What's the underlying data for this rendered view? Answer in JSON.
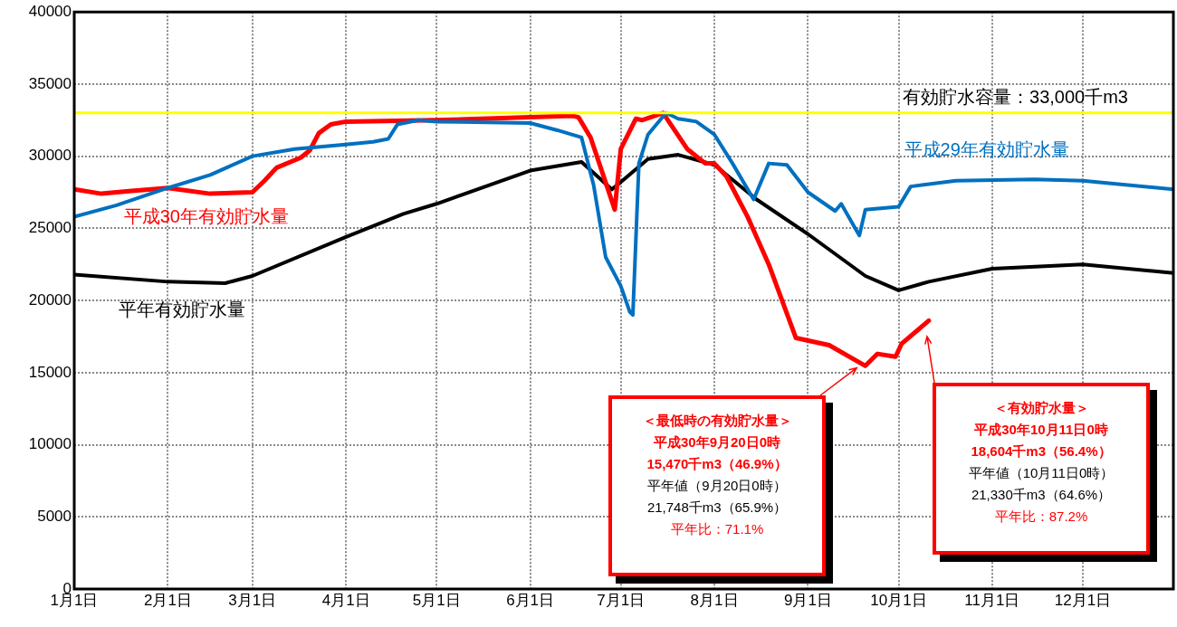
{
  "chart_data": {
    "type": "line",
    "xlim": [
      "--01-01",
      "--12-31"
    ],
    "xticks": [
      {
        "value": "--01-01",
        "label": "1月1日"
      },
      {
        "value": "--02-01",
        "label": "2月1日"
      },
      {
        "value": "--03-01",
        "label": "3月1日"
      },
      {
        "value": "--04-01",
        "label": "4月1日"
      },
      {
        "value": "--05-01",
        "label": "5月1日"
      },
      {
        "value": "--06-01",
        "label": "6月1日"
      },
      {
        "value": "--07-01",
        "label": "7月1日"
      },
      {
        "value": "--08-01",
        "label": "8月1日"
      },
      {
        "value": "--09-01",
        "label": "9月1日"
      },
      {
        "value": "--10-01",
        "label": "10月1日"
      },
      {
        "value": "--11-01",
        "label": "11月1日"
      },
      {
        "value": "--12-01",
        "label": "12月1日"
      }
    ],
    "ylim": [
      0,
      40000
    ],
    "yticks": [
      0,
      5000,
      10000,
      15000,
      20000,
      25000,
      30000,
      35000,
      40000
    ],
    "grid": true,
    "legend": false,
    "marker": "none",
    "line_style": "solid",
    "series": [
      {
        "name": "平成29年有効貯水量",
        "color": "#0070c0",
        "x": [
          "--01-01",
          "--01-15",
          "--02-01",
          "--02-15",
          "--03-01",
          "--03-15",
          "--03-31",
          "--04-10",
          "--04-15",
          "--04-18",
          "--04-25",
          "--05-01",
          "--06-01",
          "--06-10",
          "--06-18",
          "--06-22",
          "--06-26",
          "--07-01",
          "--07-04",
          "--07-05",
          "--07-07",
          "--07-10",
          "--07-16",
          "--07-20",
          "--07-26",
          "--08-01",
          "--08-07",
          "--08-14",
          "--08-19",
          "--08-25",
          "--09-01",
          "--09-10",
          "--09-12",
          "--09-18",
          "--09-20",
          "--10-01",
          "--10-05",
          "--10-20",
          "--11-15",
          "--12-01",
          "--12-31"
        ],
        "values": [
          25800,
          26600,
          27800,
          28700,
          30000,
          30500,
          30800,
          31000,
          31200,
          32200,
          32500,
          32400,
          32300,
          31800,
          31300,
          28000,
          23000,
          21000,
          19200,
          19000,
          29500,
          31500,
          33000,
          32600,
          32400,
          31500,
          29500,
          27000,
          29500,
          29400,
          27500,
          26200,
          26700,
          24500,
          26300,
          26500,
          27900,
          28300,
          28400,
          28300,
          27700
        ]
      },
      {
        "name": "平成30年有効貯水量",
        "color": "#ff0000",
        "x": [
          "--01-01",
          "--01-10",
          "--01-20",
          "--02-01",
          "--02-15",
          "--03-01",
          "--03-05",
          "--03-09",
          "--03-17",
          "--03-20",
          "--03-23",
          "--03-27",
          "--04-01",
          "--05-01",
          "--06-01",
          "--06-15",
          "--06-17",
          "--06-21",
          "--06-29",
          "--07-01",
          "--07-06",
          "--07-08",
          "--07-15",
          "--07-23",
          "--07-29",
          "--08-01",
          "--08-05",
          "--08-12",
          "--08-19",
          "--08-28",
          "--09-08",
          "--09-20",
          "--09-24",
          "--09-30",
          "--10-02",
          "--10-11"
        ],
        "values": [
          27700,
          27400,
          27600,
          27800,
          27400,
          27500,
          28300,
          29200,
          29900,
          30400,
          31600,
          32200,
          32400,
          32500,
          32700,
          32800,
          32700,
          31300,
          26300,
          30500,
          32600,
          32500,
          33000,
          30500,
          29500,
          29500,
          28600,
          25800,
          22500,
          17400,
          16900,
          15470,
          16300,
          16100,
          17000,
          18600
        ]
      },
      {
        "name": "平年有効貯水量",
        "color": "#000000",
        "x": [
          "--01-01",
          "--02-01",
          "--02-20",
          "--03-01",
          "--04-01",
          "--04-20",
          "--05-01",
          "--06-01",
          "--06-18",
          "--06-28",
          "--07-01",
          "--07-10",
          "--07-20",
          "--08-01",
          "--08-15",
          "--09-01",
          "--09-20",
          "--10-01",
          "--10-11",
          "--11-01",
          "--12-01",
          "--12-31"
        ],
        "values": [
          21800,
          21300,
          21200,
          21700,
          24400,
          26000,
          26700,
          29000,
          29600,
          27700,
          28200,
          29800,
          30100,
          29400,
          27000,
          24600,
          21700,
          20700,
          21300,
          22200,
          22500,
          21900
        ]
      }
    ],
    "ref_lines": [
      {
        "axis": "y",
        "value": 33000,
        "label": "有効貯水容量：33,000千m3",
        "color": "#ffff00"
      }
    ],
    "annotations": [
      "＜最低時の有効貯水量＞",
      "平成30年9月20日0時",
      "15,470千m3（46.9%）",
      "平年値（9月20日0時）",
      "21,748千m3（65.9%）",
      "平年比：71.1%",
      "＜有効貯水量＞",
      "平成30年10月11日0時",
      "18,604千m3（56.4%）",
      "平年値（10月11日0時）",
      "21,330千m3（64.6%）",
      "平年比：87.2%"
    ]
  }
}
